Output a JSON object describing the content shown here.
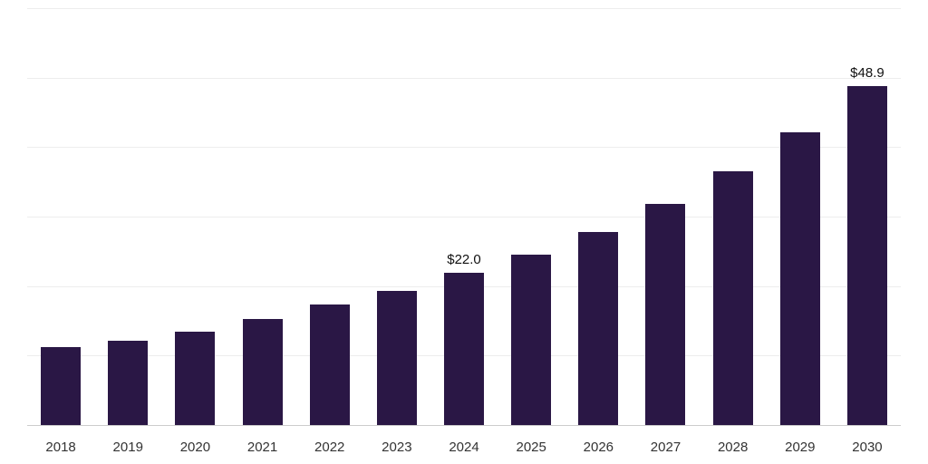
{
  "chart_data": {
    "type": "bar",
    "title": "",
    "xlabel": "",
    "ylabel": "",
    "categories": [
      "2018",
      "2019",
      "2020",
      "2021",
      "2022",
      "2023",
      "2024",
      "2025",
      "2026",
      "2027",
      "2028",
      "2029",
      "2030"
    ],
    "values": [
      11.3,
      12.2,
      13.6,
      15.4,
      17.5,
      19.4,
      22.0,
      24.6,
      27.9,
      32.0,
      36.6,
      42.2,
      48.9
    ],
    "data_labels": [
      "",
      "",
      "",
      "",
      "",
      "",
      "$22.0",
      "",
      "",
      "",
      "",
      "",
      "$48.9"
    ],
    "ylim": [
      0,
      60
    ],
    "grid_step": 10,
    "grid_on": true,
    "legend": "none",
    "colors": {
      "bar": "#2A1745",
      "gridline": "#EDEDED",
      "axis_line": "#CCCCCC",
      "tick_label": "#333333",
      "data_label": "#111111",
      "background": "#FFFFFF"
    }
  }
}
